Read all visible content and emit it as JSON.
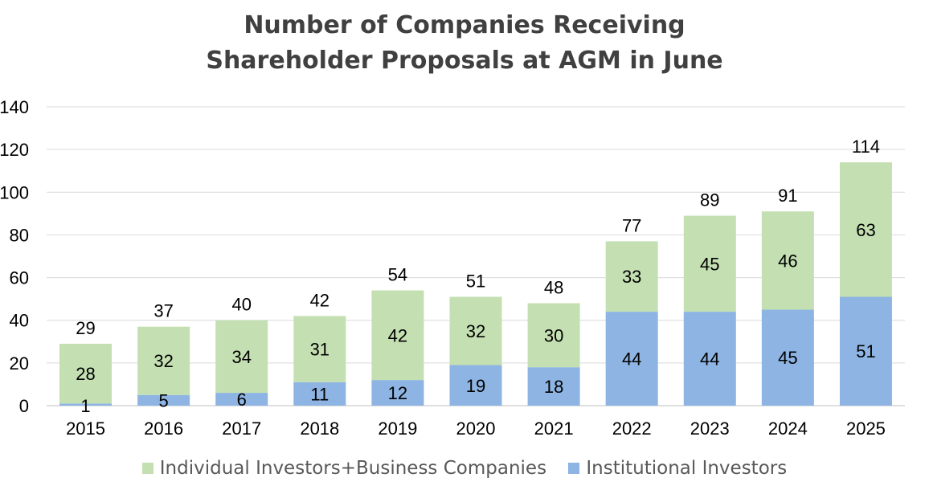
{
  "chart_data": {
    "type": "bar",
    "stacked": true,
    "title": [
      "Number of Companies Receiving",
      "Shareholder Proposals at AGM in June"
    ],
    "categories": [
      "2015",
      "2016",
      "2017",
      "2018",
      "2019",
      "2020",
      "2021",
      "2022",
      "2023",
      "2024",
      "2025"
    ],
    "series": [
      {
        "name": "Institutional Investors",
        "values": [
          1,
          5,
          6,
          11,
          12,
          19,
          18,
          44,
          44,
          45,
          51
        ],
        "color": "#8db4e2"
      },
      {
        "name": "Individual Investors+Business Companies",
        "values": [
          28,
          32,
          34,
          31,
          42,
          32,
          30,
          33,
          45,
          46,
          63
        ],
        "color": "#c4e0b2"
      }
    ],
    "totals": [
      29,
      37,
      40,
      42,
      54,
      51,
      48,
      77,
      89,
      91,
      114
    ],
    "ylim": [
      0,
      140
    ],
    "yticks": [
      0,
      20,
      40,
      60,
      80,
      100,
      120,
      140
    ],
    "grid": true,
    "legend_position": "bottom",
    "legend_order": [
      "Individual Investors+Business Companies",
      "Institutional Investors"
    ]
  }
}
